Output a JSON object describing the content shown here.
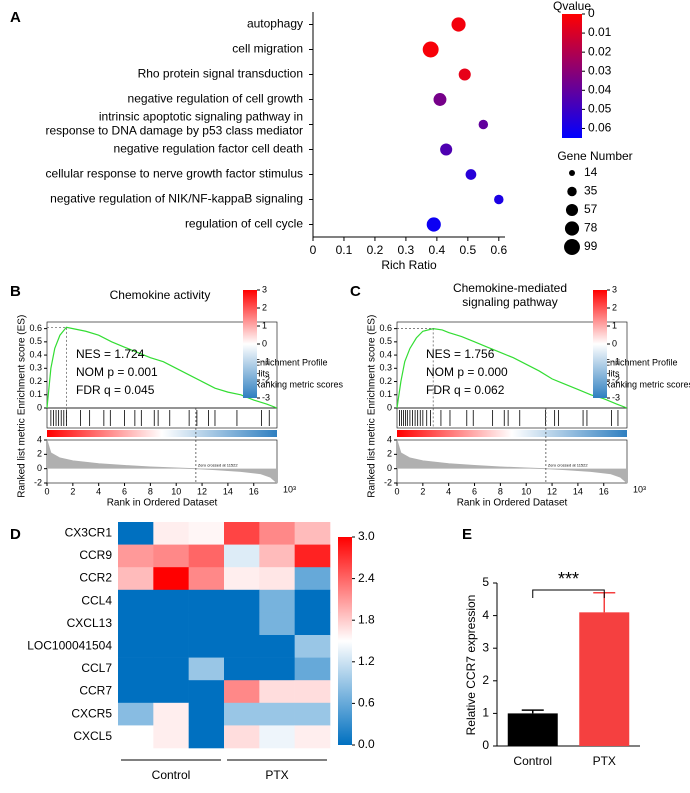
{
  "chart_data": [
    {
      "panel": "A",
      "type": "dot",
      "categories": [
        "autophagy",
        "cell migration",
        "Rho protein signal transduction",
        "negative regulation of cell growth",
        "intrinsic apoptotic signaling pathway in response to DNA damage by p53 class mediator",
        "negative regulation factor cell death",
        "cellular response to nerve growth factor stimulus",
        "negative regulation of NIK/NF-kappaB signaling",
        "regulation of cell cycle"
      ],
      "values": [
        0.47,
        0.38,
        0.49,
        0.41,
        0.55,
        0.43,
        0.51,
        0.6,
        0.39
      ],
      "qvalues": [
        0.003,
        0.002,
        0.006,
        0.035,
        0.04,
        0.045,
        0.055,
        0.058,
        0.062
      ],
      "gene_numbers": [
        78,
        99,
        57,
        65,
        35,
        57,
        45,
        35,
        78
      ],
      "x_label": "Rich Ratio",
      "xlim": [
        0,
        0.62
      ],
      "xticks": [
        0,
        0.1,
        0.2,
        0.3,
        0.4,
        0.5,
        0.6
      ],
      "color_title": "Qvalue",
      "color_lim": [
        0,
        0.065
      ],
      "color_ticks": [
        0,
        0.01,
        0.02,
        0.03,
        0.04,
        0.05,
        0.06
      ],
      "colors": [
        "#ff0000",
        "#0000ff"
      ],
      "size_title": "Gene Number",
      "size_legend": [
        14,
        35,
        57,
        78,
        99
      ]
    },
    {
      "panel": "B",
      "type": "gsea",
      "title": "Chemokine activity",
      "y_label": "Enrichment score (ES)",
      "ylim": [
        0,
        0.65
      ],
      "yticks": [
        0,
        0.1,
        0.2,
        0.3,
        0.4,
        0.5,
        0.6
      ],
      "y2_label": "Ranked list metric",
      "y2lim": [
        -2,
        4
      ],
      "y2ticks": [
        -2,
        0,
        2,
        4
      ],
      "x_label": "Rank in Ordered Dataset",
      "x_unit": "10³",
      "xlim": [
        0,
        17.8
      ],
      "xticks": [
        0,
        2,
        4,
        6,
        8,
        10,
        12,
        14,
        16
      ],
      "annotations": [
        "NES = 1.724",
        "NOM p = 0.001",
        "FDR q = 0.045"
      ],
      "zero_cross": {
        "x": 11.522,
        "label": "Zero crossed at 11522"
      },
      "colorbar_lim": [
        -3,
        3
      ],
      "colorbar_ticks": [
        3,
        2,
        1,
        0,
        -1,
        -2,
        -3
      ],
      "series": [
        {
          "name": "Enrichment Profile",
          "color": "#33dd33",
          "x": [
            0,
            0.3,
            0.6,
            1,
            1.5,
            2,
            3,
            4,
            5,
            6,
            7,
            8,
            9,
            10,
            11,
            12,
            13,
            14,
            15,
            16,
            17,
            17.8
          ],
          "values": [
            0,
            0.3,
            0.45,
            0.55,
            0.61,
            0.6,
            0.58,
            0.55,
            0.5,
            0.46,
            0.42,
            0.38,
            0.35,
            0.3,
            0.25,
            0.2,
            0.15,
            0.12,
            0.1,
            0.06,
            0.03,
            0
          ]
        },
        {
          "name": "Hits",
          "color": "#000000",
          "x": [
            0.3,
            0.5,
            0.7,
            0.9,
            1.1,
            1.3,
            1.5,
            2.6,
            3.3,
            4.4,
            4.9,
            6,
            6.8,
            7.3,
            8.3,
            8.6,
            9.5,
            11,
            11.6,
            12.5,
            13,
            14.7,
            16.6,
            17.2
          ]
        },
        {
          "name": "Ranking metric scores",
          "color": "#b0b0b0",
          "x": [
            0,
            0.3,
            1,
            2,
            4,
            6,
            8,
            10,
            11.5,
            13,
            15,
            16.5,
            17.3,
            17.8
          ],
          "values": [
            4,
            2.2,
            1.5,
            1.1,
            0.7,
            0.45,
            0.25,
            0.1,
            0,
            -0.15,
            -0.4,
            -0.7,
            -1.2,
            -2
          ]
        }
      ]
    },
    {
      "panel": "C",
      "type": "gsea",
      "title": "Chemokine-mediated signaling pathway",
      "y_label": "Enrichment score (ES)",
      "ylim": [
        0,
        0.65
      ],
      "yticks": [
        0,
        0.1,
        0.2,
        0.3,
        0.4,
        0.5,
        0.6
      ],
      "y2_label": "Ranked list metric",
      "y2lim": [
        -2,
        4
      ],
      "y2ticks": [
        -2,
        0,
        2,
        4
      ],
      "x_label": "Rank in Ordered Dataset",
      "x_unit": "10³",
      "xlim": [
        0,
        17.8
      ],
      "xticks": [
        0,
        2,
        4,
        6,
        8,
        10,
        12,
        14,
        16
      ],
      "annotations": [
        "NES = 1.756",
        "NOM p = 0.000",
        "FDR q = 0.062"
      ],
      "zero_cross": {
        "x": 11.522,
        "label": "Zero crossed at 11522"
      },
      "colorbar_lim": [
        -3,
        3
      ],
      "colorbar_ticks": [
        3,
        2,
        1,
        0,
        -1,
        -2,
        -3
      ],
      "series": [
        {
          "name": "Enrichment Profile",
          "color": "#33dd33",
          "x": [
            0,
            0.3,
            0.6,
            1,
            1.5,
            2,
            2.8,
            3.5,
            4,
            5,
            6,
            7,
            8,
            9,
            10,
            11,
            12,
            13,
            14,
            15,
            16,
            17,
            17.8
          ],
          "values": [
            0,
            0.2,
            0.35,
            0.45,
            0.53,
            0.58,
            0.6,
            0.59,
            0.57,
            0.54,
            0.5,
            0.46,
            0.42,
            0.38,
            0.33,
            0.28,
            0.22,
            0.18,
            0.14,
            0.1,
            0.07,
            0.03,
            0
          ]
        },
        {
          "name": "Hits",
          "color": "#000000",
          "x": [
            0.2,
            0.35,
            0.5,
            0.65,
            0.8,
            1,
            1.2,
            1.4,
            1.6,
            1.8,
            2,
            2.3,
            2.6,
            3.4,
            4.1,
            5.4,
            5.9,
            7.4,
            8.3,
            8.6,
            9.5,
            11.5,
            12.2,
            12.5,
            14.4,
            14.7,
            16.6,
            17.1
          ]
        },
        {
          "name": "Ranking metric scores",
          "color": "#b0b0b0",
          "x": [
            0,
            0.3,
            1,
            2,
            4,
            6,
            8,
            10,
            11.5,
            13,
            15,
            16.5,
            17.3,
            17.8
          ],
          "values": [
            4,
            2.2,
            1.5,
            1.1,
            0.7,
            0.45,
            0.25,
            0.1,
            0,
            -0.15,
            -0.4,
            -0.7,
            -1.2,
            -2
          ]
        }
      ]
    },
    {
      "panel": "D",
      "type": "heatmap",
      "rows": [
        "CX3CR1",
        "CCR9",
        "CCR2",
        "CCL4",
        "CXCL13",
        "LOC100041504",
        "CCL7",
        "CCR7",
        "CXCR5",
        "CXCL5"
      ],
      "groups": [
        "Control",
        "PTX"
      ],
      "values": [
        [
          0,
          1.6,
          1.55,
          2.6,
          2.2,
          1.9
        ],
        [
          2.1,
          2.2,
          2.4,
          1.3,
          1.9,
          2.8
        ],
        [
          1.9,
          3.0,
          2.2,
          1.6,
          1.65,
          0.6
        ],
        [
          0,
          0,
          0,
          0,
          0.7,
          0
        ],
        [
          0,
          0,
          0,
          0,
          0.7,
          0
        ],
        [
          0,
          0,
          0,
          0,
          0,
          0.9
        ],
        [
          0,
          0,
          0.9,
          0,
          0,
          0.6
        ],
        [
          0,
          0,
          0,
          2.2,
          1.7,
          1.7
        ],
        [
          0.8,
          1.6,
          0,
          0.9,
          0.9,
          0.9
        ],
        [
          1.5,
          1.6,
          0,
          1.7,
          1.4,
          1.6
        ]
      ],
      "zlim": [
        0,
        3
      ],
      "zticks": [
        {
          "value": 0,
          "label": "0.0"
        },
        {
          "value": 0.6,
          "label": "0.6"
        },
        {
          "value": 1.2,
          "label": "1.2"
        },
        {
          "value": 1.8,
          "label": "1.8"
        },
        {
          "value": 2.4,
          "label": "2.4"
        },
        {
          "value": 3,
          "label": "3.0"
        }
      ],
      "colors": [
        "#0070c0",
        "#ffffff",
        "#ff0000"
      ]
    },
    {
      "panel": "E",
      "type": "bar",
      "y_label": "Relative CCR7 expression",
      "categories": [
        "Control",
        "PTX"
      ],
      "values": [
        1,
        4.1
      ],
      "errors": [
        0.1,
        0.6
      ],
      "colors": [
        "#000000",
        "#f54040"
      ],
      "ylim": [
        0,
        5
      ],
      "yticks": [
        0,
        1,
        2,
        3,
        4,
        5
      ],
      "annotation": "***"
    }
  ]
}
